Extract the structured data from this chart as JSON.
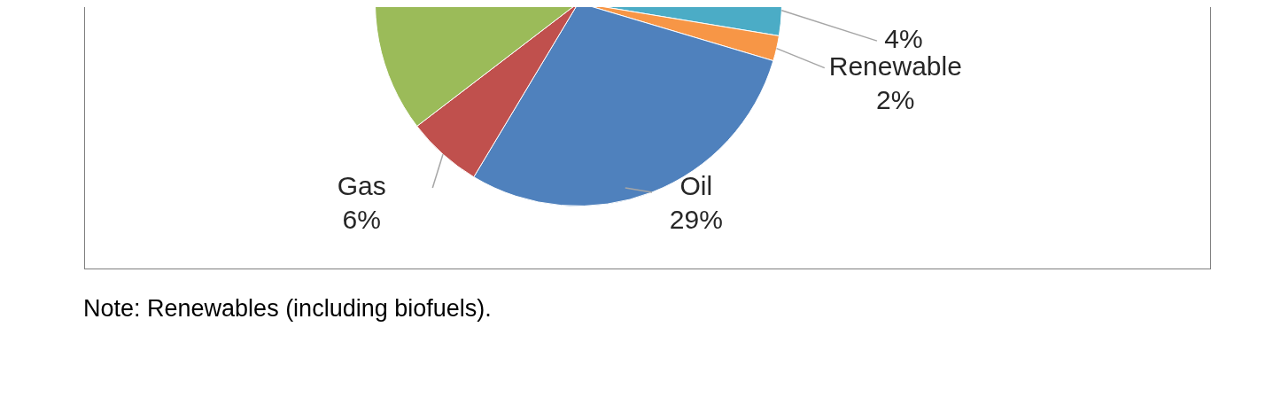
{
  "chart_data": {
    "type": "pie",
    "categories": [
      null,
      "Renewable",
      "Oil",
      "Gas",
      null
    ],
    "values": [
      4,
      2,
      29,
      6,
      59
    ],
    "colors": [
      "#4bacc6",
      "#f79646",
      "#4f81bd",
      "#c0504d",
      "#9bbb59"
    ],
    "value_labels": [
      "4%",
      "2%",
      "29%",
      "6%",
      null
    ],
    "annotations": [
      "Note: Renewables (including biofuels)."
    ]
  }
}
